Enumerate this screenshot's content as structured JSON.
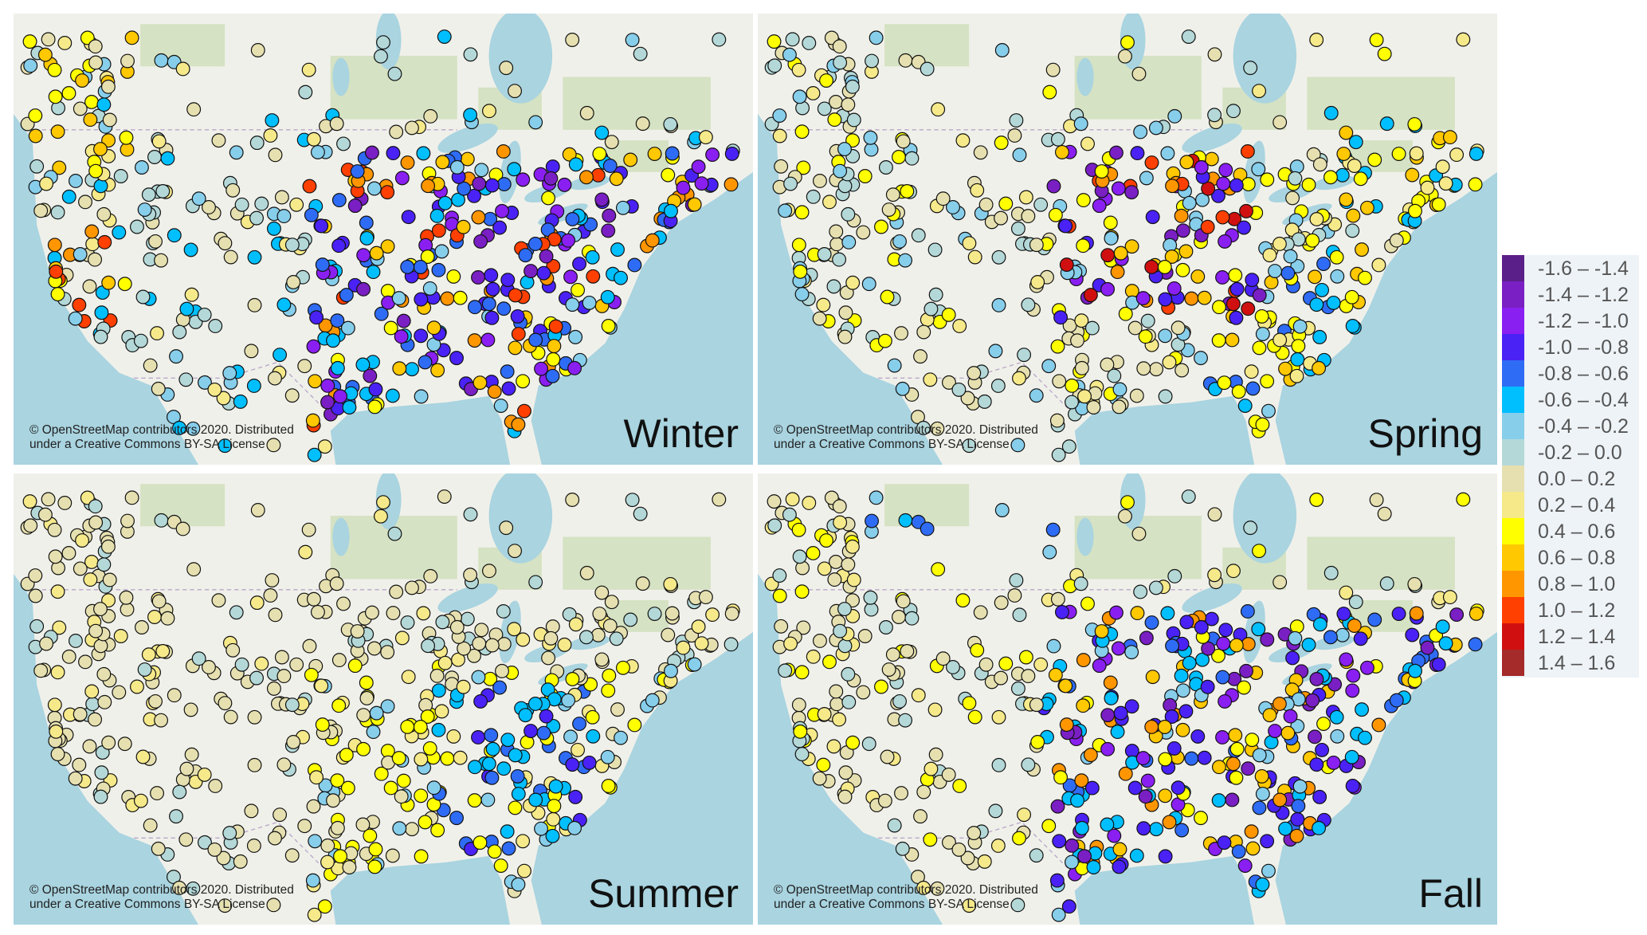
{
  "attribution": {
    "line1": "© OpenStreetMap contributors 2020. Distributed",
    "line2": "under a Creative Commons BY-SA License"
  },
  "panels": [
    {
      "season": "Winter"
    },
    {
      "season": "Spring"
    },
    {
      "season": "Summer"
    },
    {
      "season": "Fall"
    }
  ],
  "legend": {
    "items": [
      {
        "label": "-1.6 – -1.4",
        "color": "#5b1f8a"
      },
      {
        "label": "-1.4 – -1.2",
        "color": "#7a1fc4"
      },
      {
        "label": "-1.2 – -1.0",
        "color": "#8a1ff2"
      },
      {
        "label": "-1.0 – -0.8",
        "color": "#4a22f5"
      },
      {
        "label": "-0.8 – -0.6",
        "color": "#2f6cf5"
      },
      {
        "label": "-0.6 – -0.4",
        "color": "#00bfff"
      },
      {
        "label": "-0.4 – -0.2",
        "color": "#87ceeb"
      },
      {
        "label": "-0.2 – 0.0",
        "color": "#b4d8d8"
      },
      {
        "label": "0.0 – 0.2",
        "color": "#e6e0b0"
      },
      {
        "label": "0.2 – 0.4",
        "color": "#f6e98a"
      },
      {
        "label": "0.4 – 0.6",
        "color": "#ffff00"
      },
      {
        "label": "0.6 – 0.8",
        "color": "#ffc800"
      },
      {
        "label": "0.8 – 1.0",
        "color": "#ff9600"
      },
      {
        "label": "1.0 – 1.2",
        "color": "#ff4000"
      },
      {
        "label": "1.2 – 1.4",
        "color": "#d01010"
      },
      {
        "label": "1.4 – 1.6",
        "color": "#a52a2a"
      }
    ]
  },
  "map_colors": {
    "land": "#f0f0ea",
    "ocean": "#a9d4e0",
    "forest": "#c9dcb2",
    "marker_outline": "#111111"
  }
}
